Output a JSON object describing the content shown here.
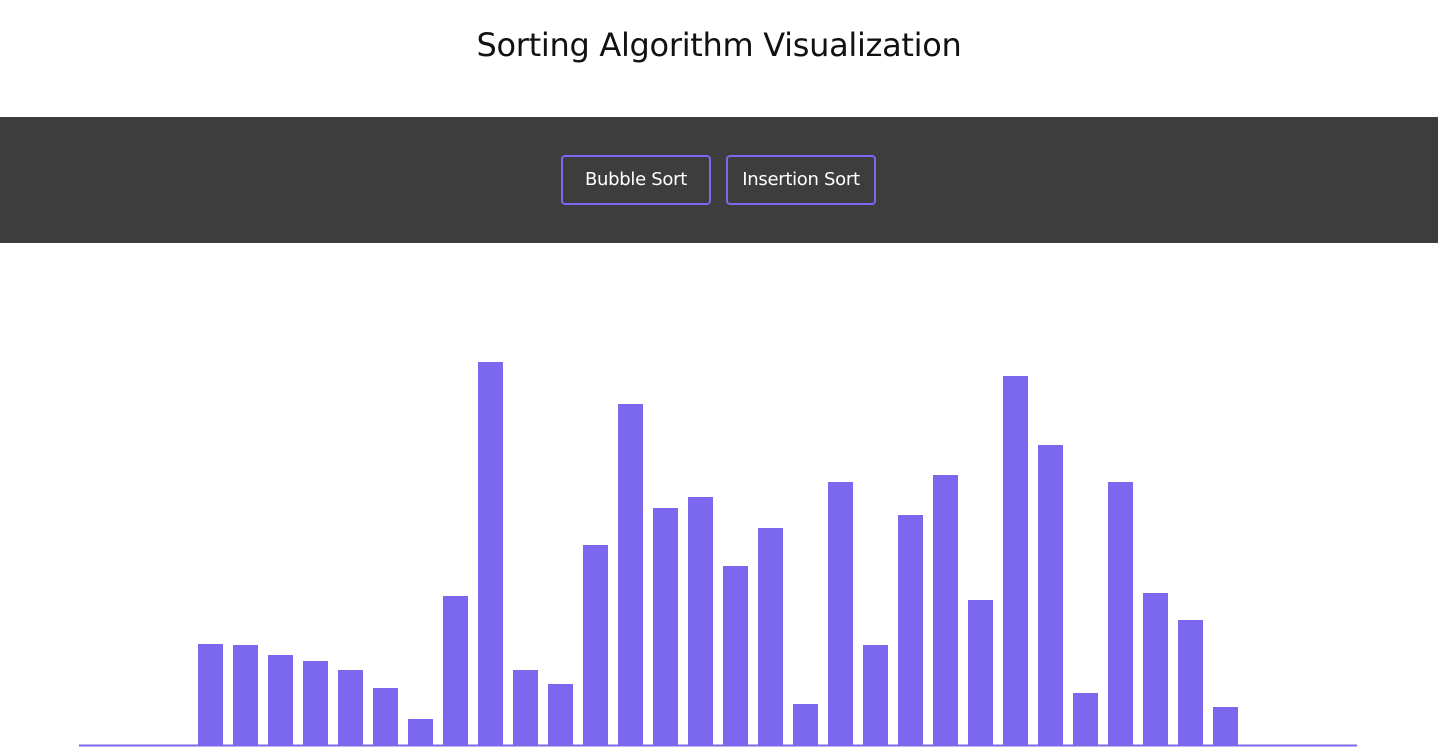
{
  "page": {
    "title": "Sorting Algorithm Visualization"
  },
  "toolbar": {
    "bubble_sort_label": "Bubble Sort",
    "insertion_sort_label": "Insertion Sort"
  },
  "colors": {
    "bar": "#7b68ee",
    "toolbar_bg": "#3d3d3d",
    "button_border": "#7b68ee"
  },
  "chart_data": {
    "type": "bar",
    "values": [
      101,
      100,
      90,
      84,
      75,
      57,
      26,
      149,
      383,
      75,
      61,
      200,
      341,
      237,
      248,
      179,
      217,
      41,
      263,
      100,
      230,
      270,
      145,
      369,
      300,
      52,
      263,
      152,
      125,
      38
    ],
    "ylim": [
      0,
      400
    ]
  }
}
